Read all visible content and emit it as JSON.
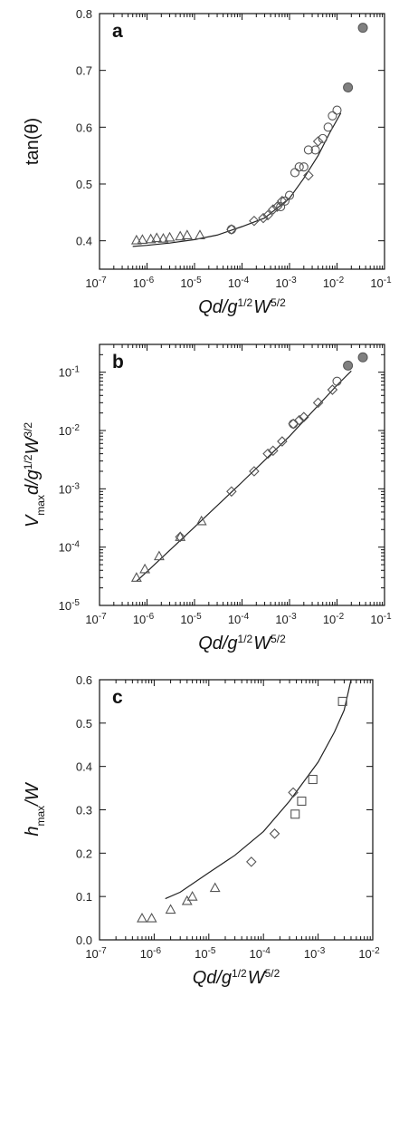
{
  "chart_data": [
    {
      "type": "scatter",
      "panel_label": "a",
      "xlabel": "Qd/g^1/2W^5/2",
      "ylabel": "tan(θ)",
      "xscale": "log",
      "xlim": [
        1e-07,
        0.1
      ],
      "ylim": [
        0.35,
        0.8
      ],
      "x_ticks": [
        -7,
        -6,
        -5,
        -4,
        -3,
        -2,
        -1
      ],
      "y_ticks": [
        0.4,
        0.5,
        0.6,
        0.7,
        0.8
      ],
      "series": [
        {
          "marker": "triangle",
          "x": [
            6e-07,
            8e-07,
            1.2e-06,
            1.6e-06,
            2.2e-06,
            3e-06,
            5e-06,
            7e-06,
            1.3e-05
          ],
          "y": [
            0.401,
            0.402,
            0.403,
            0.405,
            0.404,
            0.406,
            0.408,
            0.41,
            0.41
          ]
        },
        {
          "marker": "diamond",
          "x": [
            6e-05,
            0.00018,
            0.00028,
            0.00035,
            0.00045,
            0.00055,
            0.0007,
            0.0025,
            0.004
          ],
          "y": [
            0.42,
            0.435,
            0.44,
            0.445,
            0.455,
            0.46,
            0.47,
            0.515,
            0.575
          ]
        },
        {
          "marker": "circle",
          "x": [
            6e-05,
            0.00065,
            0.0008,
            0.001,
            0.0013,
            0.0016,
            0.002,
            0.0025,
            0.0035,
            0.005,
            0.0065,
            0.008,
            0.01
          ],
          "y": [
            0.42,
            0.46,
            0.47,
            0.48,
            0.52,
            0.53,
            0.53,
            0.56,
            0.56,
            0.58,
            0.6,
            0.62,
            0.63
          ]
        },
        {
          "marker": "filled-circle",
          "x": [
            0.017,
            0.035
          ],
          "y": [
            0.67,
            0.775
          ]
        }
      ],
      "fit": {
        "x": [
          5e-07,
          1e-06,
          3e-06,
          1e-05,
          3e-05,
          0.0001,
          0.0003,
          0.001,
          0.002,
          0.004,
          0.007,
          0.012
        ],
        "y": [
          0.39,
          0.392,
          0.396,
          0.402,
          0.41,
          0.425,
          0.44,
          0.475,
          0.51,
          0.55,
          0.59,
          0.625
        ]
      }
    },
    {
      "type": "scatter",
      "panel_label": "b",
      "xlabel": "Qd/g^1/2W^5/2",
      "ylabel": "Vmaxd/g^1/2W^3/2",
      "xscale": "log",
      "yscale": "log",
      "xlim": [
        1e-07,
        0.1
      ],
      "ylim": [
        1e-05,
        0.3
      ],
      "x_ticks": [
        -7,
        -6,
        -5,
        -4,
        -3,
        -2,
        -1
      ],
      "y_ticks": [
        -5,
        -4,
        -3,
        -2,
        -1
      ],
      "series": [
        {
          "marker": "triangle",
          "x": [
            6e-07,
            9e-07,
            1.8e-06,
            5e-06,
            1.4e-05
          ],
          "y": [
            3e-05,
            4.2e-05,
            7e-05,
            0.00015,
            0.00028
          ]
        },
        {
          "marker": "diamond",
          "x": [
            5e-06,
            6e-05,
            0.00018,
            0.00035,
            0.00045,
            0.0007,
            0.0012,
            0.0016,
            0.002,
            0.004,
            0.008
          ],
          "y": [
            0.00015,
            0.0009,
            0.002,
            0.004,
            0.0045,
            0.0065,
            0.013,
            0.015,
            0.017,
            0.03,
            0.05
          ]
        },
        {
          "marker": "circle",
          "x": [
            0.0012,
            0.01
          ],
          "y": [
            0.013,
            0.07
          ]
        },
        {
          "marker": "filled-circle",
          "x": [
            0.017,
            0.035
          ],
          "y": [
            0.13,
            0.18
          ]
        }
      ],
      "fit": {
        "x": [
          6e-07,
          1e-06,
          1e-05,
          0.0001,
          0.001,
          0.01,
          0.02
        ],
        "y": [
          2.6e-05,
          3.8e-05,
          0.00022,
          0.0013,
          0.008,
          0.06,
          0.105
        ]
      }
    },
    {
      "type": "scatter",
      "panel_label": "c",
      "xlabel": "Qd/g^1/2W^5/2",
      "ylabel": "hmax/W",
      "xscale": "log",
      "xlim": [
        1e-07,
        0.01
      ],
      "ylim": [
        0.0,
        0.6
      ],
      "x_ticks": [
        -7,
        -6,
        -5,
        -4,
        -3,
        -2
      ],
      "y_ticks": [
        0.0,
        0.1,
        0.2,
        0.3,
        0.4,
        0.5,
        0.6
      ],
      "series": [
        {
          "marker": "triangle",
          "x": [
            6e-07,
            9e-07,
            2e-06,
            4e-06,
            5e-06,
            1.3e-05
          ],
          "y": [
            0.05,
            0.05,
            0.07,
            0.09,
            0.1,
            0.12
          ]
        },
        {
          "marker": "diamond",
          "x": [
            6e-05,
            0.00016,
            0.00035
          ],
          "y": [
            0.18,
            0.245,
            0.34
          ]
        },
        {
          "marker": "square",
          "x": [
            0.00038,
            0.0005,
            0.0008,
            0.0028
          ],
          "y": [
            0.29,
            0.32,
            0.37,
            0.55
          ]
        }
      ],
      "fit": {
        "x": [
          1.6e-06,
          3e-06,
          1e-05,
          3e-05,
          0.0001,
          0.0003,
          0.001,
          0.002,
          0.003,
          0.004
        ],
        "y": [
          0.095,
          0.11,
          0.155,
          0.195,
          0.25,
          0.32,
          0.41,
          0.48,
          0.53,
          0.6
        ]
      }
    }
  ]
}
